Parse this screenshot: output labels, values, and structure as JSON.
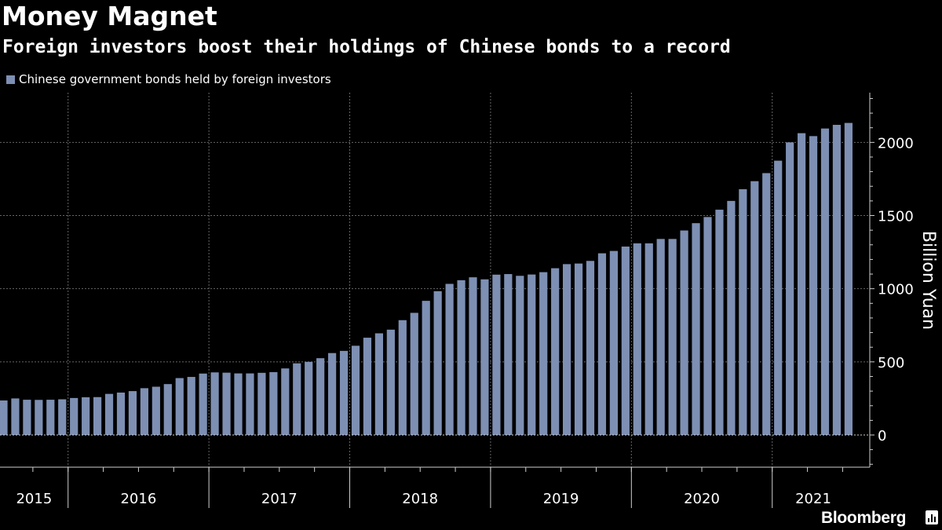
{
  "chart_data": {
    "type": "bar",
    "title": "Money Magnet",
    "subtitle": "Foreign investors boost their holdings of Chinese bonds to a record",
    "xlabel": "",
    "ylabel": "Billion Yuan",
    "ylim": [
      -220,
      2340
    ],
    "y_ticks": [
      0,
      500,
      1000,
      1500,
      2000
    ],
    "y_tick_labels": [
      "0",
      "500",
      "1000",
      "1500",
      "2000"
    ],
    "x_year_labels": [
      "2015",
      "2016",
      "2017",
      "2018",
      "2019",
      "2020",
      "2021"
    ],
    "grid": true,
    "legend_position": "top-left",
    "colors": {
      "bar": "#7d8fb3",
      "background": "#000000",
      "grid": "#666666",
      "text": "#ffffff"
    },
    "series": [
      {
        "name": "Chinese government bonds held by foreign investors",
        "start": "2015-07",
        "values": [
          236,
          250,
          241,
          240,
          241,
          244,
          253,
          258,
          259,
          281,
          290,
          300,
          320,
          330,
          348,
          389,
          397,
          420,
          428,
          426,
          421,
          421,
          425,
          430,
          455,
          490,
          500,
          525,
          560,
          575,
          610,
          665,
          695,
          720,
          785,
          835,
          917,
          983,
          1033,
          1058,
          1078,
          1064,
          1096,
          1100,
          1088,
          1097,
          1113,
          1140,
          1168,
          1172,
          1190,
          1242,
          1258,
          1288,
          1310,
          1310,
          1340,
          1340,
          1398,
          1448,
          1490,
          1540,
          1600,
          1680,
          1735,
          1790,
          1875,
          2000,
          2063,
          2043,
          2095,
          2120,
          2133
        ]
      }
    ]
  },
  "legend": {
    "label": "Chinese government bonds held by foreign investors"
  },
  "footer": {
    "brand": "Bloomberg"
  }
}
